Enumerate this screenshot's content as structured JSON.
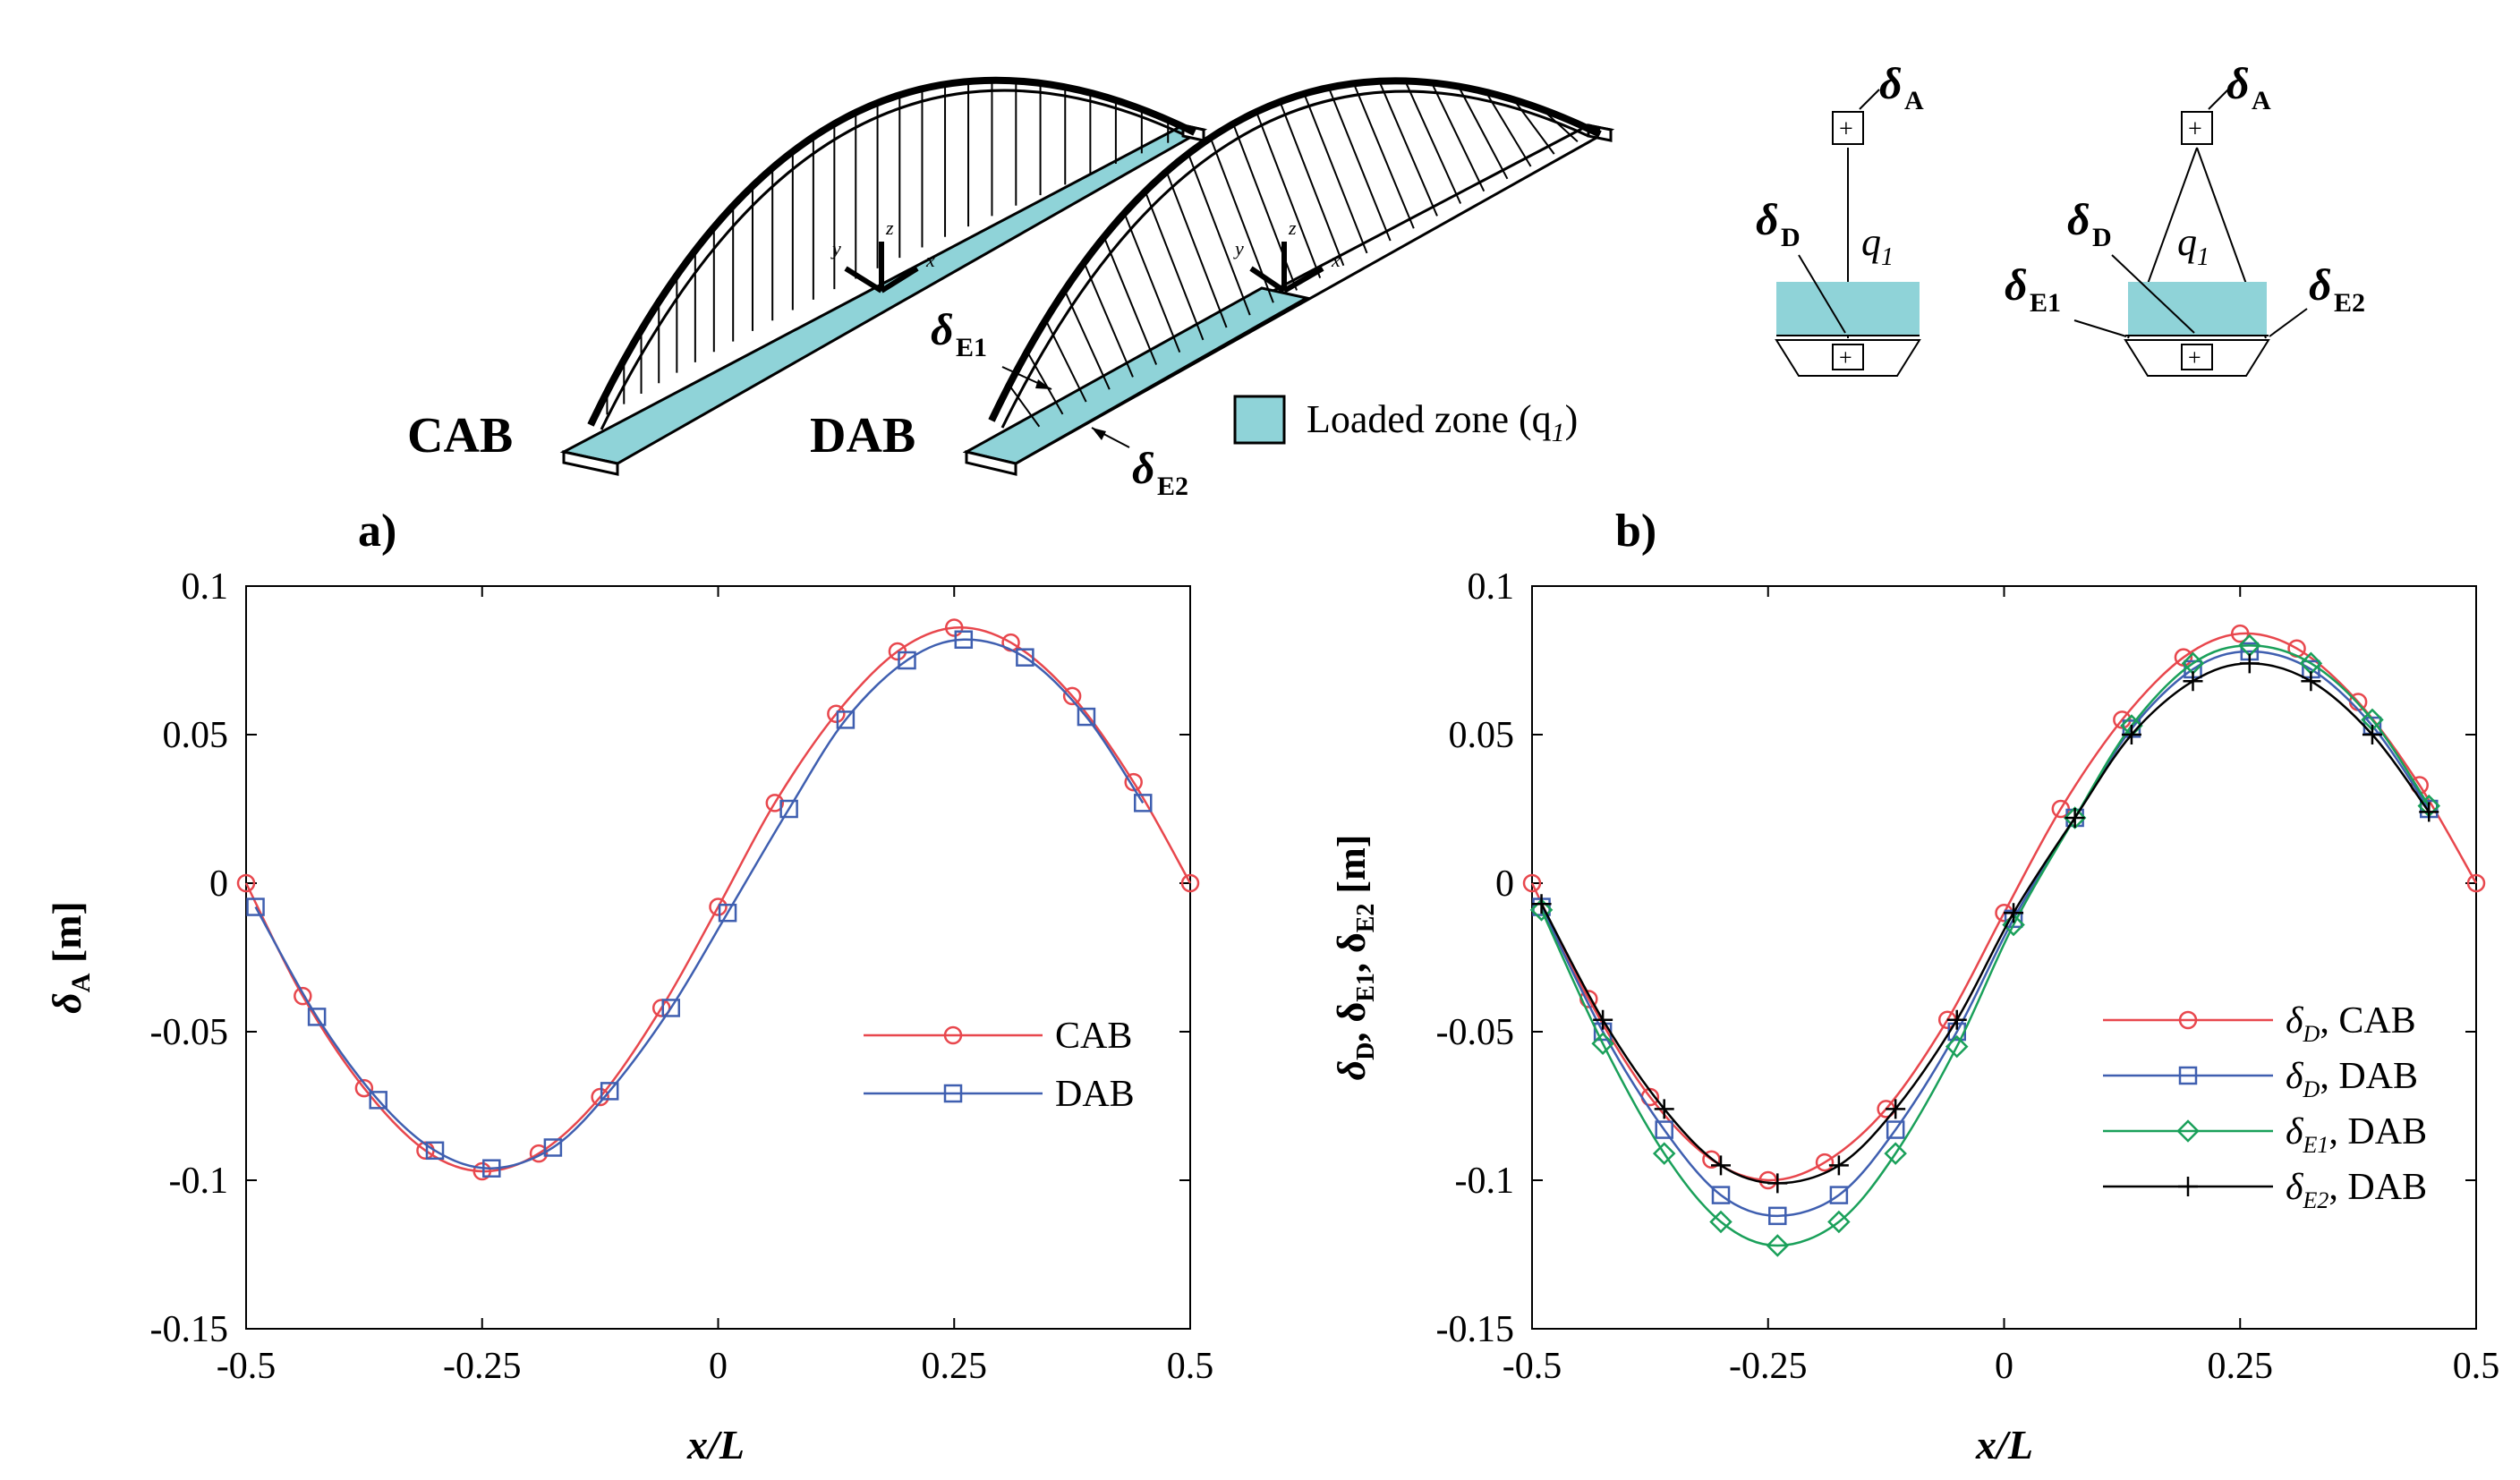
{
  "schematic": {
    "cab_label": "CAB",
    "dab_label": "DAB",
    "legend_label": "Loaded zone (q",
    "legend_sub": "1",
    "legend_close": ")",
    "legend_color": "#8fd3d8",
    "axis_y": "y",
    "axis_z": "z",
    "axis_x": "x",
    "delta": "δ",
    "sub_A": "A",
    "sub_D": "D",
    "sub_E1": "E1",
    "sub_E2": "E2",
    "q": "q",
    "q_sub": "1",
    "plus": "+"
  },
  "chart_data": [
    {
      "type": "line",
      "panel_label": "a)",
      "xlabel": "x/L",
      "ylabel_base": "δ",
      "ylabel_sub": "A",
      "ylabel_unit": "[m]",
      "xlim": [
        -0.5,
        0.5
      ],
      "ylim": [
        -0.15,
        0.1
      ],
      "xticks": [
        -0.5,
        -0.25,
        0,
        0.25,
        0.5
      ],
      "xtick_labels": [
        "-0.5",
        "-0.25",
        "0",
        "0.25",
        "0.5"
      ],
      "yticks": [
        -0.15,
        -0.1,
        -0.05,
        0,
        0.05,
        0.1
      ],
      "ytick_labels": [
        "-0.15",
        "-0.1",
        "-0.05",
        "0",
        "0.05",
        "0.1"
      ],
      "legend_position": "center-right",
      "series": [
        {
          "name": "CAB",
          "color": "#e8474d",
          "marker": "circle",
          "x": [
            -0.5,
            -0.44,
            -0.375,
            -0.31,
            -0.25,
            -0.19,
            -0.125,
            -0.06,
            0,
            0.06,
            0.125,
            0.19,
            0.25,
            0.31,
            0.375,
            0.44,
            0.5
          ],
          "y": [
            0,
            -0.038,
            -0.069,
            -0.09,
            -0.097,
            -0.091,
            -0.072,
            -0.042,
            -0.008,
            0.027,
            0.057,
            0.078,
            0.086,
            0.081,
            0.063,
            0.034,
            0
          ]
        },
        {
          "name": "DAB",
          "color": "#3f5fb0",
          "marker": "square",
          "x": [
            -0.49,
            -0.425,
            -0.36,
            -0.3,
            -0.24,
            -0.175,
            -0.115,
            -0.05,
            0.01,
            0.075,
            0.135,
            0.2,
            0.26,
            0.325,
            0.39,
            0.45
          ],
          "y": [
            -0.008,
            -0.045,
            -0.073,
            -0.09,
            -0.096,
            -0.089,
            -0.07,
            -0.042,
            -0.01,
            0.025,
            0.055,
            0.075,
            0.082,
            0.076,
            0.056,
            0.027
          ]
        }
      ]
    },
    {
      "type": "line",
      "panel_label": "b)",
      "xlabel": "x/L",
      "ylabel_parts": [
        "δ",
        "D",
        ", δ",
        "E1",
        ", δ",
        "E2",
        " [m]"
      ],
      "xlim": [
        -0.5,
        0.5
      ],
      "ylim": [
        -0.15,
        0.1
      ],
      "xticks": [
        -0.5,
        -0.25,
        0,
        0.25,
        0.5
      ],
      "xtick_labels": [
        "-0.5",
        "-0.25",
        "0",
        "0.25",
        "0.5"
      ],
      "yticks": [
        -0.15,
        -0.1,
        -0.05,
        0,
        0.05,
        0.1
      ],
      "ytick_labels": [
        "-0.15",
        "-0.1",
        "-0.05",
        "0",
        "0.05",
        "0.1"
      ],
      "legend_position": "bottom-right",
      "series": [
        {
          "name": "δ_D, CAB",
          "legend_base": "δ",
          "legend_sub": "D",
          "legend_suffix": ", CAB",
          "color": "#e8474d",
          "marker": "circle",
          "x": [
            -0.5,
            -0.44,
            -0.375,
            -0.31,
            -0.25,
            -0.19,
            -0.125,
            -0.06,
            0,
            0.06,
            0.125,
            0.19,
            0.25,
            0.31,
            0.375,
            0.44,
            0.5
          ],
          "y": [
            0,
            -0.039,
            -0.072,
            -0.093,
            -0.1,
            -0.094,
            -0.076,
            -0.046,
            -0.01,
            0.025,
            0.055,
            0.076,
            0.084,
            0.079,
            0.061,
            0.033,
            0
          ]
        },
        {
          "name": "δ_D, DAB",
          "legend_base": "δ",
          "legend_sub": "D",
          "legend_suffix": ", DAB",
          "color": "#3f5fb0",
          "marker": "square",
          "x": [
            -0.49,
            -0.425,
            -0.36,
            -0.3,
            -0.24,
            -0.175,
            -0.115,
            -0.05,
            0.01,
            0.075,
            0.135,
            0.2,
            0.26,
            0.325,
            0.39,
            0.45
          ],
          "y": [
            -0.008,
            -0.05,
            -0.083,
            -0.105,
            -0.112,
            -0.105,
            -0.083,
            -0.05,
            -0.012,
            0.022,
            0.052,
            0.072,
            0.078,
            0.072,
            0.053,
            0.025
          ]
        },
        {
          "name": "δ_E1, DAB",
          "legend_base": "δ",
          "legend_sub": "E1",
          "legend_suffix": ", DAB",
          "color": "#1aa05a",
          "marker": "diamond",
          "x": [
            -0.49,
            -0.425,
            -0.36,
            -0.3,
            -0.24,
            -0.175,
            -0.115,
            -0.05,
            0.01,
            0.075,
            0.135,
            0.2,
            0.26,
            0.325,
            0.39,
            0.45
          ],
          "y": [
            -0.009,
            -0.054,
            -0.091,
            -0.114,
            -0.122,
            -0.114,
            -0.091,
            -0.055,
            -0.014,
            0.022,
            0.053,
            0.074,
            0.08,
            0.074,
            0.055,
            0.026
          ]
        },
        {
          "name": "δ_E2, DAB",
          "legend_base": "δ",
          "legend_sub": "E2",
          "legend_suffix": ", DAB",
          "color": "#000000",
          "marker": "plus",
          "x": [
            -0.49,
            -0.425,
            -0.36,
            -0.3,
            -0.24,
            -0.175,
            -0.115,
            -0.05,
            0.01,
            0.075,
            0.135,
            0.2,
            0.26,
            0.325,
            0.39,
            0.45
          ],
          "y": [
            -0.007,
            -0.046,
            -0.076,
            -0.095,
            -0.101,
            -0.095,
            -0.076,
            -0.046,
            -0.01,
            0.022,
            0.05,
            0.068,
            0.074,
            0.068,
            0.05,
            0.024
          ]
        }
      ]
    }
  ]
}
